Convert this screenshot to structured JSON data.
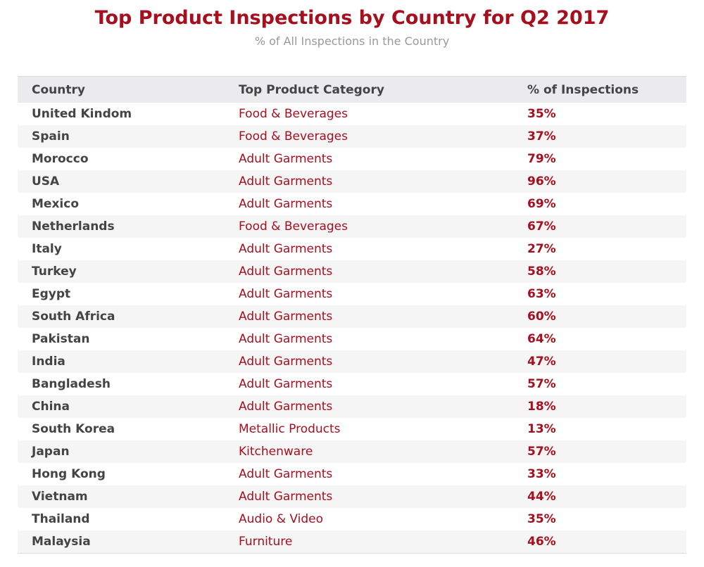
{
  "header": {
    "title": "Top Product Inspections by Country for Q2 2017",
    "subtitle": "% of All Inspections in the Country"
  },
  "table": {
    "columns": [
      "Country",
      "Top Product Category",
      "% of Inspections"
    ],
    "rows": [
      [
        "United Kindom",
        "Food & Beverages",
        "35%"
      ],
      [
        "Spain",
        "Food & Beverages",
        "37%"
      ],
      [
        "Morocco",
        "Adult Garments",
        "79%"
      ],
      [
        "USA",
        "Adult Garments",
        "96%"
      ],
      [
        "Mexico",
        "Adult Garments",
        "69%"
      ],
      [
        "Netherlands",
        "Food & Beverages",
        "67%"
      ],
      [
        "Italy",
        "Adult Garments",
        "27%"
      ],
      [
        "Turkey",
        "Adult Garments",
        "58%"
      ],
      [
        "Egypt",
        "Adult Garments",
        "63%"
      ],
      [
        "South Africa",
        "Adult Garments",
        "60%"
      ],
      [
        "Pakistan",
        "Adult Garments",
        "64%"
      ],
      [
        "India",
        "Adult Garments",
        "47%"
      ],
      [
        "Bangladesh",
        "Adult Garments",
        "57%"
      ],
      [
        "China",
        "Adult Garments",
        "18%"
      ],
      [
        "South Korea",
        "Metallic Products",
        "13%"
      ],
      [
        "Japan",
        "Kitchenware",
        "57%"
      ],
      [
        "Hong Kong",
        "Adult Garments",
        "33%"
      ],
      [
        "Vietnam",
        "Adult Garments",
        "44%"
      ],
      [
        "Thailand",
        "Audio & Video",
        "35%"
      ],
      [
        "Malaysia",
        "Furniture",
        "46%"
      ]
    ]
  }
}
